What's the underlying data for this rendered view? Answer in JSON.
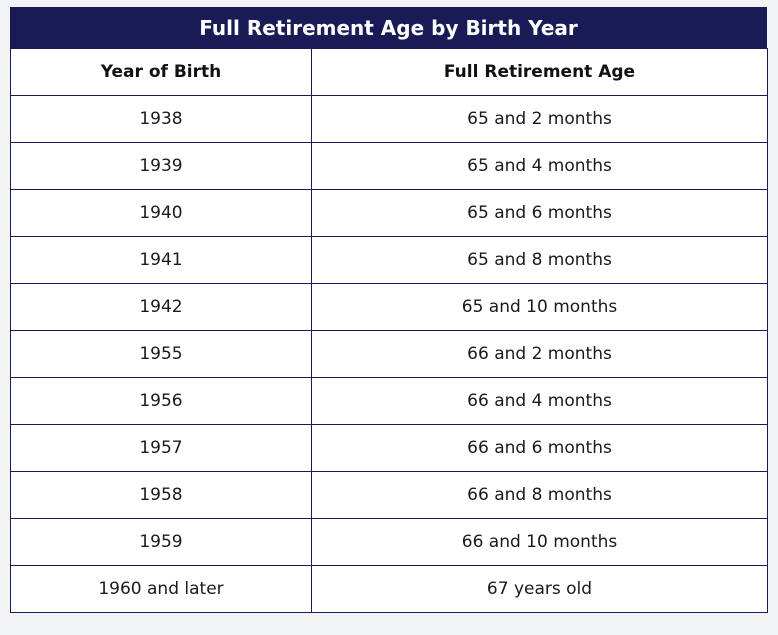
{
  "table": {
    "title": "Full Retirement Age by Birth Year",
    "headers": [
      "Year of Birth",
      "Full Retirement Age"
    ],
    "rows": [
      [
        "1938",
        "65 and 2 months"
      ],
      [
        "1939",
        "65 and 4 months"
      ],
      [
        "1940",
        "65 and 6 months"
      ],
      [
        "1941",
        "65 and 8 months"
      ],
      [
        "1942",
        "65 and 10 months"
      ],
      [
        "1955",
        "66 and 2 months"
      ],
      [
        "1956",
        "66 and 4 months"
      ],
      [
        "1957",
        "66 and 6 months"
      ],
      [
        "1958",
        "66 and 8 months"
      ],
      [
        "1959",
        "66 and 10 months"
      ],
      [
        "1960 and later",
        "67 years old"
      ]
    ]
  },
  "colors": {
    "header_bg": "#1a1a57",
    "header_text": "#ffffff",
    "border": "#1a1a57",
    "page_bg": "#f3f4f6"
  }
}
